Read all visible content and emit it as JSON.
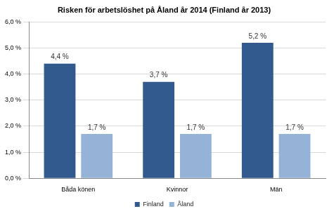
{
  "chart_data": {
    "type": "bar",
    "title": "Risken för arbetslöshet på Åland år 2014 (Finland år 2013)",
    "categories": [
      "Båda könen",
      "Kvinnor",
      "Män"
    ],
    "series": [
      {
        "name": "Finland",
        "color": "#335a8f",
        "values": [
          4.4,
          3.7,
          5.2
        ],
        "value_labels": [
          "4,4 %",
          "3,7 %",
          "5,2 %"
        ]
      },
      {
        "name": "Åland",
        "color": "#95b3d7",
        "values": [
          1.7,
          1.7,
          1.7
        ],
        "value_labels": [
          "1,7 %",
          "1,7 %",
          "1,7 %"
        ]
      }
    ],
    "ylim": [
      0,
      6
    ],
    "yticks": [
      {
        "value": 0,
        "label": "0,0 %"
      },
      {
        "value": 1,
        "label": "1,0 %"
      },
      {
        "value": 2,
        "label": "2,0 %"
      },
      {
        "value": 3,
        "label": "3,0 %"
      },
      {
        "value": 4,
        "label": "4,0 %"
      },
      {
        "value": 5,
        "label": "5,0 %"
      },
      {
        "value": 6,
        "label": "6,0 %"
      }
    ],
    "grid": true,
    "legend": "bottom",
    "data_labels": true
  }
}
